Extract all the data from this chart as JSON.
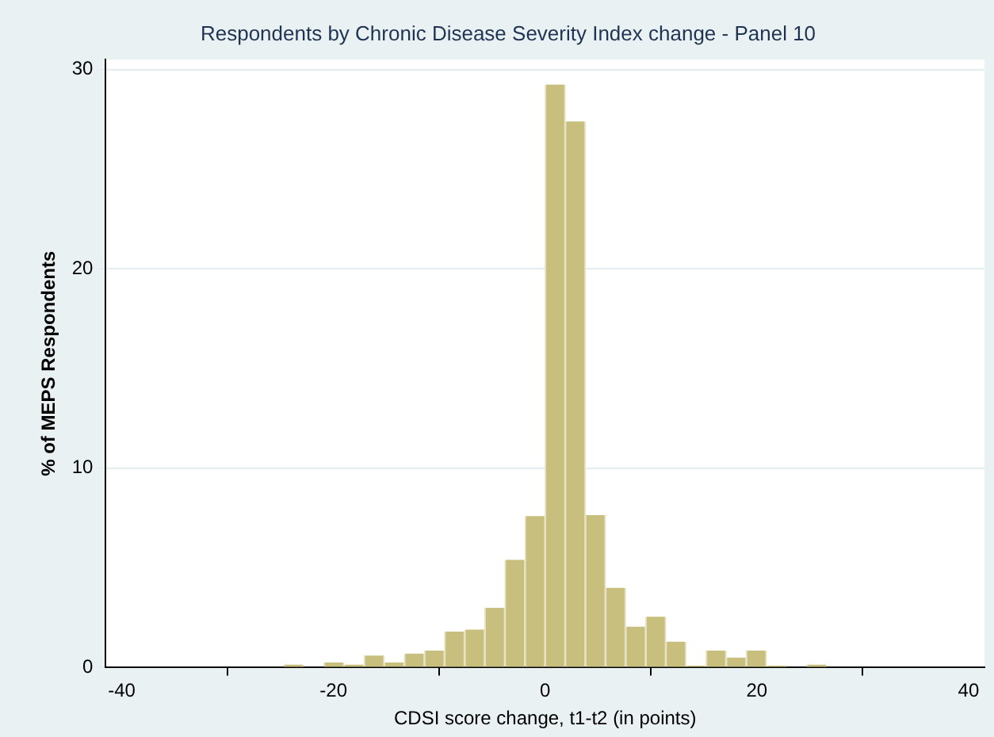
{
  "chart_data": {
    "type": "histogram",
    "title": "Respondents by Chronic Disease Severity Index change - Panel 10",
    "xlabel": "CDSI score change, t1-t2 (in points)",
    "ylabel": "% of MEPS Respondents",
    "bins": [
      -24.7,
      -22.8,
      -20.9,
      -19,
      -17.1,
      -15.2,
      -13.3,
      -11.4,
      -9.5,
      -7.6,
      -5.7,
      -3.8,
      -1.9,
      0,
      1.9,
      3.8,
      5.7,
      7.6,
      9.5,
      11.4,
      13.3,
      15.2,
      17.1,
      19,
      20.9,
      22.8,
      24.7,
      26.6
    ],
    "values": [
      0.15,
      0,
      0.25,
      0.15,
      0.6,
      0.25,
      0.7,
      0.85,
      1.8,
      1.9,
      3,
      5.4,
      7.6,
      29.25,
      27.4,
      7.65,
      4,
      2.05,
      2.55,
      1.3,
      0.1,
      0.85,
      0.5,
      0.85,
      0.1,
      0,
      0.15
    ],
    "color": "#c8bf7e",
    "xlim": [
      -41.5,
      41.5
    ],
    "xticks": [
      -40,
      -20,
      0,
      20,
      40
    ],
    "ylim": [
      0,
      30.5
    ],
    "yticks": [
      0,
      10,
      20,
      30
    ],
    "grid": "y"
  }
}
